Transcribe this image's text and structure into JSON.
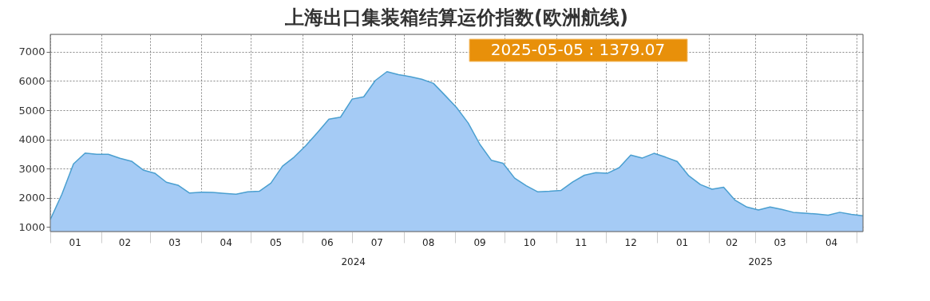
{
  "chart_data": {
    "type": "area",
    "title": "上海出口集装箱结算运价指数(欧洲航线)",
    "x": [
      "2024-01-01",
      "2024-01-08",
      "2024-01-15",
      "2024-01-22",
      "2024-01-29",
      "2024-02-05",
      "2024-02-12",
      "2024-02-19",
      "2024-02-26",
      "2024-03-04",
      "2024-03-11",
      "2024-03-18",
      "2024-03-25",
      "2024-04-01",
      "2024-04-08",
      "2024-04-15",
      "2024-04-22",
      "2024-04-29",
      "2024-05-06",
      "2024-05-13",
      "2024-05-20",
      "2024-05-27",
      "2024-06-03",
      "2024-06-10",
      "2024-06-17",
      "2024-06-24",
      "2024-07-01",
      "2024-07-08",
      "2024-07-15",
      "2024-07-22",
      "2024-07-29",
      "2024-08-05",
      "2024-08-12",
      "2024-08-19",
      "2024-08-26",
      "2024-09-02",
      "2024-09-09",
      "2024-09-16",
      "2024-09-23",
      "2024-09-30",
      "2024-10-07",
      "2024-10-14",
      "2024-10-21",
      "2024-10-28",
      "2024-11-04",
      "2024-11-11",
      "2024-11-18",
      "2024-11-25",
      "2024-12-02",
      "2024-12-09",
      "2024-12-16",
      "2024-12-23",
      "2024-12-30",
      "2025-01-06",
      "2025-01-13",
      "2025-01-20",
      "2025-01-27",
      "2025-02-03",
      "2025-02-10",
      "2025-02-17",
      "2025-02-24",
      "2025-03-03",
      "2025-03-10",
      "2025-03-17",
      "2025-03-24",
      "2025-03-31",
      "2025-04-07",
      "2025-04-14",
      "2025-04-21",
      "2025-04-28",
      "2025-05-05"
    ],
    "series": [
      {
        "color": "#a5cbf5",
        "values": [
          1250,
          2120,
          3160,
          3530,
          3490,
          3490,
          3350,
          3250,
          2950,
          2840,
          2530,
          2430,
          2160,
          2190,
          2180,
          2150,
          2120,
          2200,
          2220,
          2500,
          3080,
          3390,
          3780,
          4230,
          4690,
          4760,
          5380,
          5460,
          6020,
          6320,
          6220,
          6150,
          6060,
          5920,
          5510,
          5090,
          4560,
          3830,
          3280,
          3180,
          2670,
          2410,
          2200,
          2220,
          2250,
          2540,
          2770,
          2860,
          2840,
          3030,
          3460,
          3360,
          3520,
          3390,
          3240,
          2750,
          2450,
          2290,
          2360,
          1910,
          1680,
          1580,
          1680,
          1600,
          1500,
          1470,
          1440,
          1400,
          1500,
          1430,
          1380
        ]
      }
    ],
    "xlim": [
      "2024-01-01",
      "2025-05-05"
    ],
    "xticks": [
      {
        "value": "2024-01-01",
        "label": null
      },
      {
        "value": "2024-02-01",
        "label": null
      },
      {
        "value": "2024-03-01",
        "label": null
      },
      {
        "value": "2024-04-01",
        "label": null
      },
      {
        "value": "2024-05-01",
        "label": null
      },
      {
        "value": "2024-06-01",
        "label": null
      },
      {
        "value": "2024-07-01",
        "label": null
      },
      {
        "value": "2024-08-01",
        "label": null
      },
      {
        "value": "2024-09-01",
        "label": null
      },
      {
        "value": "2024-10-01",
        "label": null
      },
      {
        "value": "2024-11-01",
        "label": null
      },
      {
        "value": "2024-12-01",
        "label": null
      },
      {
        "value": "2025-01-01",
        "label": null
      },
      {
        "value": "2025-02-01",
        "label": null
      },
      {
        "value": "2025-03-01",
        "label": null
      },
      {
        "value": "2025-04-01",
        "label": null
      },
      {
        "value": "2025-05-01",
        "label": null
      },
      {
        "value": "2024-01-16",
        "label": "01"
      },
      {
        "value": "2024-02-15",
        "label": "02"
      },
      {
        "value": "2024-03-16",
        "label": "03"
      },
      {
        "value": "2024-04-16",
        "label": "04"
      },
      {
        "value": "2024-05-16",
        "label": "05"
      },
      {
        "value": "2024-06-16",
        "label": "06"
      },
      {
        "value": "2024-07-16",
        "label": "07"
      },
      {
        "value": "2024-08-16",
        "label": "08"
      },
      {
        "value": "2024-09-16",
        "label": "09"
      },
      {
        "value": "2024-10-16",
        "label": "10"
      },
      {
        "value": "2024-11-16",
        "label": "11"
      },
      {
        "value": "2024-12-16",
        "label": "12"
      },
      {
        "value": "2025-01-16",
        "label": "01"
      },
      {
        "value": "2025-02-15",
        "label": "02"
      },
      {
        "value": "2025-03-16",
        "label": "03"
      },
      {
        "value": "2025-04-16",
        "label": "04"
      }
    ],
    "ylim": [
      840,
      7600
    ],
    "yticks": [
      1000,
      2000,
      3000,
      4000,
      5000,
      6000,
      7000
    ],
    "grid": true,
    "annotations": [
      "2024",
      "2025",
      "2025-05-05 : 1379.07"
    ]
  }
}
